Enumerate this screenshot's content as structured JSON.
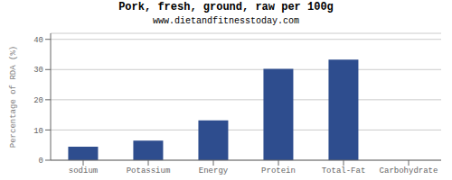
{
  "chart_data": {
    "type": "bar",
    "title": "Pork, fresh, ground, raw per 100g",
    "subtitle": "www.dietandfitnesstoday.com",
    "categories": [
      "sodium",
      "Potassium",
      "Energy",
      "Protein",
      "Total-Fat",
      "Carbohydrate"
    ],
    "values": [
      4.5,
      6.5,
      13.2,
      30.2,
      33.3,
      0
    ],
    "color": "#2e4d8e",
    "ylabel": "Percentage of RDA (%)",
    "ylim": [
      0,
      42
    ],
    "yticks": [
      0,
      10,
      20,
      30,
      40
    ],
    "grid": true
  }
}
